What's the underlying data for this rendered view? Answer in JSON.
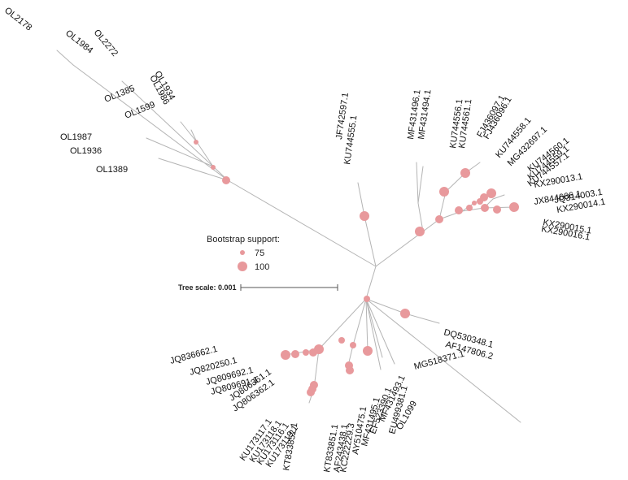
{
  "legend": {
    "title": "Bootstrap support:",
    "items": [
      {
        "label": "75"
      },
      {
        "label": "100"
      }
    ]
  },
  "scale": {
    "label": "Tree scale: 0.001"
  },
  "tips": [
    "OL2178",
    "OL1984",
    "OL2272",
    "OL1934",
    "OL1986",
    "OL1385",
    "OL1599",
    "OL1987",
    "OL1936",
    "OL1389",
    "JF742597.1",
    "KU744555.1",
    "MF431496.1",
    "MF431494.1",
    "KU744556.1",
    "KU744561.1",
    "FJ436097.1",
    "FJ436096.1",
    "KU744558.1",
    "MG432697.1",
    "KU744560.1",
    "KU744559.1",
    "KU744557.1",
    "KX290013.1",
    "JX844666.1",
    "JQ314003.1",
    "KX290014.1",
    "KX290015.1",
    "KX290016.1",
    "JQ836662.1",
    "JQ820250.1",
    "JQ809692.1",
    "JQ809691.1",
    "JQ806361.1",
    "JQ806362.1",
    "KU173117.1",
    "KU173118.1",
    "KU173116.1",
    "KU173119.1",
    "KT833852.1",
    "KT833851.1",
    "AF243438.1",
    "KC222229.3",
    "AY510475.1",
    "MF431495.1",
    "EF523390.1",
    "MF431493.1",
    "EU499381.1",
    "OL1099",
    "MG518371.1",
    "DQ530348.1",
    "AF147806.2"
  ]
}
